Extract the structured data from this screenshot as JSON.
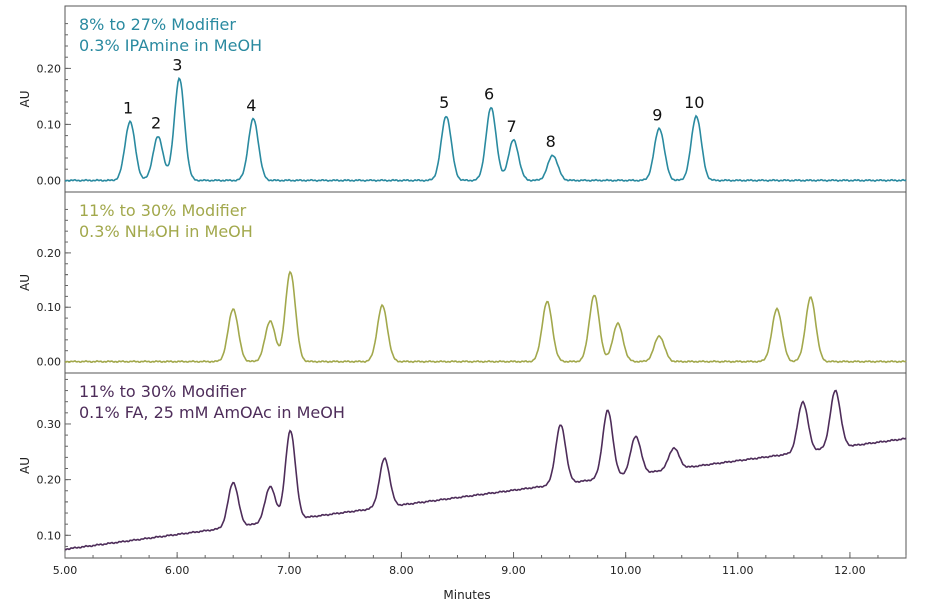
{
  "chart_data": [
    {
      "type": "line",
      "annotation": [
        "8% to 27% Modifier",
        "0.3% IPAmine in MeOH"
      ],
      "color": "#2a8aa0",
      "ylabel": "AU",
      "ylim": [
        -0.01,
        0.29
      ],
      "yticks": [
        "0.00",
        "0.10",
        "0.20"
      ],
      "baseline": {
        "start": 0.0,
        "slope": 0.0
      },
      "peaks": [
        {
          "x": 5.58,
          "y": 0.105,
          "label": "1"
        },
        {
          "x": 5.83,
          "y": 0.078,
          "label": "2"
        },
        {
          "x": 6.02,
          "y": 0.182,
          "label": "3"
        },
        {
          "x": 6.68,
          "y": 0.11,
          "label": "4"
        },
        {
          "x": 8.4,
          "y": 0.115,
          "label": "5"
        },
        {
          "x": 8.8,
          "y": 0.13,
          "label": "6"
        },
        {
          "x": 9.0,
          "y": 0.072,
          "label": "7"
        },
        {
          "x": 9.35,
          "y": 0.045,
          "label": "8"
        },
        {
          "x": 10.3,
          "y": 0.093,
          "label": "9"
        },
        {
          "x": 10.63,
          "y": 0.115,
          "label": "10"
        }
      ]
    },
    {
      "type": "line",
      "annotation": [
        "11% to 30% Modifier",
        "0.3% NH₄OH in MeOH"
      ],
      "color": "#a2a84c",
      "ylabel": "AU",
      "ylim": [
        -0.01,
        0.29
      ],
      "yticks": [
        "0.00",
        "0.10",
        "0.20"
      ],
      "baseline": {
        "start": 0.0,
        "slope": 0.0
      },
      "peaks": [
        {
          "x": 6.5,
          "y": 0.097
        },
        {
          "x": 6.83,
          "y": 0.075
        },
        {
          "x": 7.01,
          "y": 0.165
        },
        {
          "x": 7.83,
          "y": 0.103
        },
        {
          "x": 9.3,
          "y": 0.11
        },
        {
          "x": 9.72,
          "y": 0.122
        },
        {
          "x": 9.93,
          "y": 0.07
        },
        {
          "x": 10.3,
          "y": 0.047
        },
        {
          "x": 11.35,
          "y": 0.097
        },
        {
          "x": 11.65,
          "y": 0.118
        }
      ]
    },
    {
      "type": "line",
      "annotation": [
        "11% to 30% Modifier",
        "0.1% FA, 25 mM AmOAc in MeOH"
      ],
      "color": "#4e2d5a",
      "ylabel": "AU",
      "ylim": [
        0.07,
        0.37
      ],
      "yticks": [
        "0.10",
        "0.20",
        "0.30"
      ],
      "baseline": {
        "start": 0.075,
        "slope": 0.0265
      },
      "peaks": [
        {
          "x": 6.5,
          "y": 0.195
        },
        {
          "x": 6.83,
          "y": 0.188
        },
        {
          "x": 7.01,
          "y": 0.288
        },
        {
          "x": 7.85,
          "y": 0.238
        },
        {
          "x": 9.42,
          "y": 0.298
        },
        {
          "x": 9.84,
          "y": 0.324
        },
        {
          "x": 10.09,
          "y": 0.278
        },
        {
          "x": 10.43,
          "y": 0.257
        },
        {
          "x": 11.58,
          "y": 0.34
        },
        {
          "x": 11.87,
          "y": 0.36
        }
      ]
    }
  ],
  "xaxis": {
    "label": "Minutes",
    "xlim": [
      5.0,
      12.5
    ],
    "ticks": [
      "5.00",
      "6.00",
      "7.00",
      "8.00",
      "9.00",
      "10.00",
      "11.00",
      "12.00"
    ]
  }
}
